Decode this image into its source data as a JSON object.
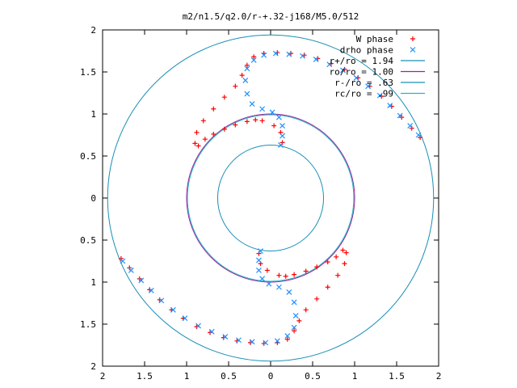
{
  "chart_data": {
    "type": "scatter",
    "title": "m2/n1.5/q2.0/r-+.32-j168/M5.0/512",
    "xlabel": "",
    "ylabel": "",
    "xlim": [
      -2,
      2
    ],
    "ylim": [
      -2,
      2
    ],
    "x_ticks": [
      -2,
      -1.5,
      -1,
      -0.5,
      0,
      0.5,
      1,
      1.5,
      2
    ],
    "y_ticks": [
      -2,
      -1.5,
      -1,
      -0.5,
      0,
      0.5,
      1,
      1.5,
      2
    ],
    "x_tick_labels": [
      "2",
      "1.5",
      "1",
      "0.5",
      "0",
      "0.5",
      "1",
      "1.5",
      "2"
    ],
    "y_tick_labels": [
      "2",
      "1.5",
      "1",
      "0.5",
      "0",
      "0.5",
      "1",
      "1.5",
      "2"
    ],
    "grid": false,
    "legend_position": "top-right",
    "series": [
      {
        "name": "W phase",
        "marker": "plus",
        "color": "#ff0000",
        "points": [
          [
            1.78,
            0.72
          ],
          [
            1.68,
            0.83
          ],
          [
            1.56,
            0.96
          ],
          [
            1.44,
            1.09
          ],
          [
            1.32,
            1.21
          ],
          [
            1.18,
            1.33
          ],
          [
            1.04,
            1.43
          ],
          [
            0.88,
            1.53
          ],
          [
            0.72,
            1.6
          ],
          [
            0.56,
            1.66
          ],
          [
            0.4,
            1.7
          ],
          [
            0.24,
            1.72
          ],
          [
            0.08,
            1.73
          ],
          [
            -0.08,
            1.72
          ],
          [
            -0.2,
            1.68
          ],
          [
            -0.28,
            1.58
          ],
          [
            -0.34,
            1.46
          ],
          [
            -0.42,
            1.33
          ],
          [
            -0.55,
            1.2
          ],
          [
            -0.68,
            1.06
          ],
          [
            -0.8,
            0.92
          ],
          [
            -0.88,
            0.78
          ],
          [
            -0.9,
            0.65
          ],
          [
            -0.86,
            0.62
          ],
          [
            -0.78,
            0.7
          ],
          [
            -0.68,
            0.76
          ],
          [
            -0.55,
            0.82
          ],
          [
            -0.42,
            0.87
          ],
          [
            -0.28,
            0.91
          ],
          [
            -0.18,
            0.93
          ],
          [
            -0.1,
            0.92
          ],
          [
            0.04,
            0.86
          ],
          [
            0.12,
            0.78
          ],
          [
            0.14,
            0.66
          ],
          [
            -1.78,
            -0.72
          ],
          [
            -1.68,
            -0.83
          ],
          [
            -1.56,
            -0.96
          ],
          [
            -1.44,
            -1.09
          ],
          [
            -1.32,
            -1.21
          ],
          [
            -1.18,
            -1.33
          ],
          [
            -1.04,
            -1.43
          ],
          [
            -0.88,
            -1.53
          ],
          [
            -0.72,
            -1.6
          ],
          [
            -0.56,
            -1.66
          ],
          [
            -0.4,
            -1.7
          ],
          [
            -0.24,
            -1.72
          ],
          [
            -0.08,
            -1.73
          ],
          [
            0.08,
            -1.72
          ],
          [
            0.2,
            -1.68
          ],
          [
            0.28,
            -1.58
          ],
          [
            0.34,
            -1.46
          ],
          [
            0.42,
            -1.33
          ],
          [
            0.55,
            -1.2
          ],
          [
            0.68,
            -1.06
          ],
          [
            0.8,
            -0.92
          ],
          [
            0.88,
            -0.78
          ],
          [
            0.9,
            -0.65
          ],
          [
            0.86,
            -0.62
          ],
          [
            0.78,
            -0.7
          ],
          [
            0.68,
            -0.76
          ],
          [
            0.55,
            -0.82
          ],
          [
            0.42,
            -0.87
          ],
          [
            0.28,
            -0.91
          ],
          [
            0.18,
            -0.93
          ],
          [
            0.1,
            -0.92
          ],
          [
            -0.04,
            -0.86
          ],
          [
            -0.12,
            -0.78
          ],
          [
            -0.14,
            -0.66
          ]
        ]
      },
      {
        "name": "drho phase",
        "marker": "cross",
        "color": "#1e90ff",
        "points": [
          [
            1.76,
            0.75
          ],
          [
            1.66,
            0.86
          ],
          [
            1.54,
            0.98
          ],
          [
            1.42,
            1.1
          ],
          [
            1.3,
            1.22
          ],
          [
            1.16,
            1.33
          ],
          [
            1.02,
            1.43
          ],
          [
            0.86,
            1.52
          ],
          [
            0.7,
            1.59
          ],
          [
            0.54,
            1.65
          ],
          [
            0.38,
            1.69
          ],
          [
            0.22,
            1.71
          ],
          [
            0.06,
            1.72
          ],
          [
            -0.08,
            1.7
          ],
          [
            -0.2,
            1.64
          ],
          [
            -0.28,
            1.54
          ],
          [
            -0.3,
            1.4
          ],
          [
            -0.28,
            1.24
          ],
          [
            -0.22,
            1.12
          ],
          [
            -0.1,
            1.06
          ],
          [
            0.02,
            1.02
          ],
          [
            0.1,
            0.96
          ],
          [
            0.14,
            0.86
          ],
          [
            0.14,
            0.74
          ],
          [
            0.12,
            0.63
          ],
          [
            -1.76,
            -0.75
          ],
          [
            -1.66,
            -0.86
          ],
          [
            -1.54,
            -0.98
          ],
          [
            -1.42,
            -1.1
          ],
          [
            -1.3,
            -1.22
          ],
          [
            -1.16,
            -1.33
          ],
          [
            -1.02,
            -1.43
          ],
          [
            -0.86,
            -1.52
          ],
          [
            -0.7,
            -1.59
          ],
          [
            -0.54,
            -1.65
          ],
          [
            -0.38,
            -1.69
          ],
          [
            -0.22,
            -1.71
          ],
          [
            -0.06,
            -1.72
          ],
          [
            0.08,
            -1.7
          ],
          [
            0.2,
            -1.64
          ],
          [
            0.28,
            -1.54
          ],
          [
            0.3,
            -1.4
          ],
          [
            0.28,
            -1.24
          ],
          [
            0.22,
            -1.12
          ],
          [
            0.1,
            -1.06
          ],
          [
            -0.02,
            -1.02
          ],
          [
            -0.1,
            -0.96
          ],
          [
            -0.14,
            -0.86
          ],
          [
            -0.14,
            -0.74
          ],
          [
            -0.12,
            -0.63
          ]
        ]
      }
    ],
    "circles": [
      {
        "label": "r+/ro = 1.94",
        "radius": 1.94,
        "color": "#1a8fb5"
      },
      {
        "label": "ro/ro = 1.00",
        "radius": 1.0,
        "color": "#a0209a"
      },
      {
        "label": "r-/ro = .63",
        "radius": 0.63,
        "color": "#1a8fb5"
      },
      {
        "label": "rc/ro = .99",
        "radius": 0.99,
        "color": "#22b5c8"
      }
    ]
  }
}
